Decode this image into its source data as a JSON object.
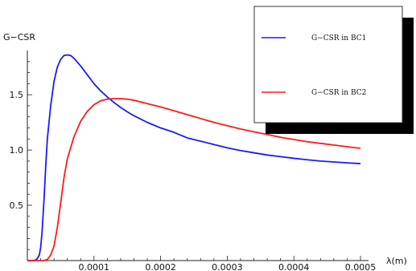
{
  "chart_data": {
    "type": "line",
    "ylabel": "G−CSR",
    "xlabel": "λ(m)",
    "xlim": [
      0,
      0.0005
    ],
    "ylim": [
      0,
      1.9
    ],
    "x_ticks": [
      "0.0001",
      "0.0002",
      "0.0003",
      "0.0004",
      "0.0005"
    ],
    "y_ticks": [
      "0.5",
      "1.0",
      "1.5"
    ],
    "grid": false,
    "legend_position": "top-right",
    "series": [
      {
        "name": "G−CSR in BC1",
        "color": "#1a1aff",
        "x": [
          0.0,
          6e-06,
          1e-05,
          1.4e-05,
          1.8e-05,
          2e-05,
          2.2e-05,
          2.5e-05,
          2.8e-05,
          3e-05,
          3.5e-05,
          4e-05,
          4.5e-05,
          5e-05,
          5.5e-05,
          6e-05,
          6.5e-05,
          7e-05,
          8e-05,
          9e-05,
          0.0001,
          0.00011,
          0.00012,
          0.00013,
          0.00014,
          0.00015,
          0.00016,
          0.00018,
          0.0002,
          0.00022,
          0.00024,
          0.00026,
          0.00028,
          0.0003,
          0.00032,
          0.00034,
          0.00036,
          0.00038,
          0.0004,
          0.00042,
          0.00044,
          0.00046,
          0.00048,
          0.0005
        ],
        "y": [
          0.0,
          0.0,
          0.0,
          0.01,
          0.05,
          0.12,
          0.25,
          0.55,
          0.9,
          1.1,
          1.4,
          1.62,
          1.75,
          1.82,
          1.855,
          1.86,
          1.855,
          1.83,
          1.76,
          1.68,
          1.6,
          1.535,
          1.48,
          1.43,
          1.385,
          1.345,
          1.31,
          1.25,
          1.2,
          1.16,
          1.11,
          1.08,
          1.05,
          1.02,
          0.995,
          0.975,
          0.955,
          0.94,
          0.925,
          0.912,
          0.9,
          0.892,
          0.884,
          0.877
        ]
      },
      {
        "name": "G−CSR in BC2",
        "color": "#ff1a1a",
        "x": [
          0.0,
          1e-05,
          2e-05,
          2.5e-05,
          3e-05,
          3.5e-05,
          4e-05,
          4.5e-05,
          5e-05,
          5.5e-05,
          6e-05,
          7e-05,
          8e-05,
          9e-05,
          0.0001,
          0.00011,
          0.00012,
          0.00013,
          0.00014,
          0.00015,
          0.00016,
          0.00018,
          0.0002,
          0.00022,
          0.00024,
          0.00026,
          0.00028,
          0.0003,
          0.00032,
          0.00034,
          0.00036,
          0.00038,
          0.0004,
          0.00042,
          0.00044,
          0.00046,
          0.00048,
          0.0005
        ],
        "y": [
          0.0,
          0.0,
          0.0,
          0.0,
          0.01,
          0.05,
          0.13,
          0.3,
          0.52,
          0.75,
          0.92,
          1.12,
          1.26,
          1.35,
          1.41,
          1.445,
          1.46,
          1.465,
          1.465,
          1.46,
          1.45,
          1.42,
          1.39,
          1.355,
          1.32,
          1.285,
          1.25,
          1.22,
          1.19,
          1.165,
          1.14,
          1.115,
          1.095,
          1.075,
          1.06,
          1.045,
          1.03,
          1.015
        ]
      }
    ]
  }
}
